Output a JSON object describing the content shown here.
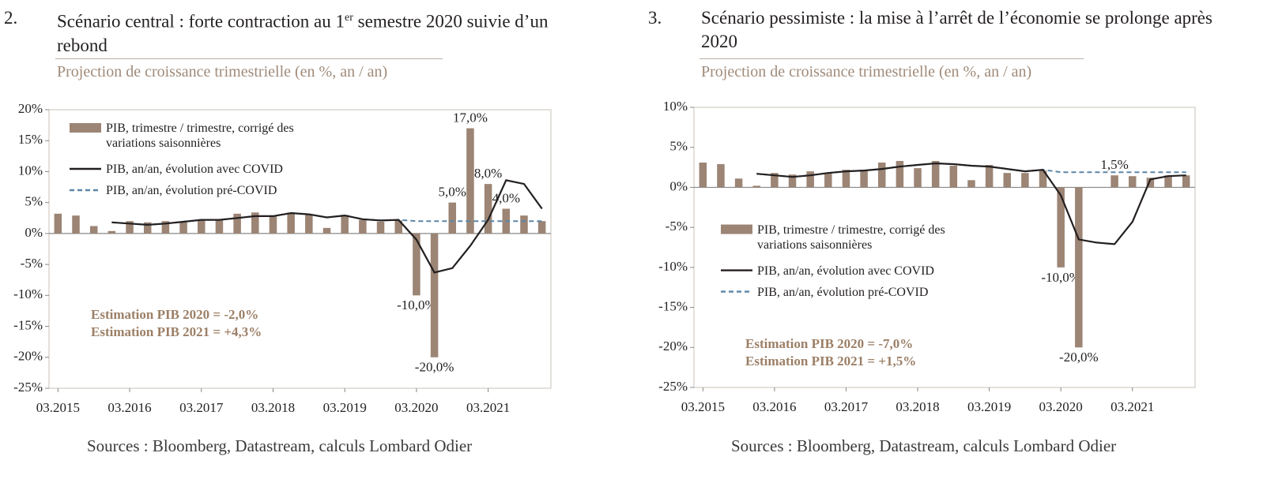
{
  "chart_data": [
    {
      "type": "bar_line",
      "number": "2.",
      "title": [
        "Scénario central : forte contraction au 1",
        "er",
        " semestre 2020 suivie d’un rebond"
      ],
      "subtitle": "Projection de croissance trimestrielle (en %, an / an)",
      "source": "Sources : Bloomberg, Datastream, calculs Lombard Odier",
      "annotations": [
        "Estimation PIB 2020 = -2,0%",
        "Estimation PIB 2021 = +4,3%"
      ],
      "legend": "upper left",
      "categories": [
        "03.2015",
        null,
        null,
        null,
        "03.2016",
        null,
        null,
        null,
        "03.2017",
        null,
        null,
        null,
        "03.2018",
        null,
        null,
        null,
        "03.2019",
        null,
        null,
        null,
        "03.2020",
        null,
        null,
        null,
        "03.2021",
        null,
        null,
        null
      ],
      "ylim": [
        -25,
        20
      ],
      "yticks": [
        {
          "value": -25,
          "label": "-25%"
        },
        {
          "value": -20,
          "label": "-20%"
        },
        {
          "value": -15,
          "label": "-15%"
        },
        {
          "value": -10,
          "label": "-10%"
        },
        {
          "value": -5,
          "label": "-5%"
        },
        {
          "value": 0,
          "label": "0%"
        },
        {
          "value": 5,
          "label": "5%"
        },
        {
          "value": 10,
          "label": "10%"
        },
        {
          "value": 15,
          "label": "15%"
        },
        {
          "value": 20,
          "label": "20%"
        }
      ],
      "series": [
        {
          "name": "PIB, trimestre / trimestre, corrigé des variations saisonnières",
          "kind": "bar",
          "color": "#9c8575",
          "values": [
            3.2,
            2.9,
            1.2,
            0.4,
            2.0,
            1.8,
            2.0,
            1.8,
            2.2,
            2.2,
            3.2,
            3.4,
            2.8,
            3.3,
            3.0,
            0.9,
            3.0,
            2.2,
            1.9,
            2.1,
            -10,
            -20,
            5,
            17,
            8,
            4,
            2.9,
            2.0
          ],
          "value_labels": [
            null,
            null,
            null,
            null,
            null,
            null,
            null,
            null,
            null,
            null,
            null,
            null,
            null,
            null,
            null,
            null,
            null,
            null,
            null,
            null,
            "-10,0%",
            "-20,0%",
            "5,0%",
            "17,0%",
            "8,0%",
            "4,0%",
            null,
            null
          ]
        },
        {
          "name": "PIB, an/an, évolution avec COVID",
          "kind": "line",
          "color": "#231f20",
          "values": [
            null,
            null,
            null,
            1.8,
            1.6,
            1.4,
            1.6,
            1.9,
            2.2,
            2.2,
            2.5,
            2.8,
            2.8,
            3.3,
            3.1,
            2.6,
            2.9,
            2.3,
            2.1,
            2.2,
            -1,
            -6.3,
            -5.6,
            -2,
            2.2,
            8.6,
            8.0,
            4.0
          ]
        },
        {
          "name": "PIB, an/an, évolution pré-COVID",
          "kind": "dashed",
          "color": "#5b86a8",
          "values": [
            null,
            null,
            null,
            1.8,
            1.6,
            1.4,
            1.6,
            1.9,
            2.2,
            2.2,
            2.5,
            2.8,
            2.8,
            3.3,
            3.1,
            2.6,
            2.9,
            2.3,
            2.1,
            2.2,
            2.0,
            2.0,
            2.0,
            2.0,
            2.0,
            2.0,
            2.0,
            2.0
          ]
        }
      ]
    },
    {
      "type": "bar_line",
      "number": "3.",
      "title": [
        "Scénario pessimiste : la mise à l’arrêt de l’économie se prolonge après 2020"
      ],
      "subtitle": "Projection de croissance trimestrielle (en %, an / an)",
      "source": "Sources : Bloomberg, Datastream, calculs Lombard Odier",
      "annotations": [
        "Estimation PIB 2020 = -7,0%",
        "Estimation PIB 2021 = +1,5%"
      ],
      "legend": "center left",
      "categories": [
        "03.2015",
        null,
        null,
        null,
        "03.2016",
        null,
        null,
        null,
        "03.2017",
        null,
        null,
        null,
        "03.2018",
        null,
        null,
        null,
        "03.2019",
        null,
        null,
        null,
        "03.2020",
        null,
        null,
        null,
        "03.2021",
        null,
        null,
        null
      ],
      "ylim": [
        -25,
        10
      ],
      "yticks": [
        {
          "value": -25,
          "label": "-25%"
        },
        {
          "value": -20,
          "label": "-20%"
        },
        {
          "value": -15,
          "label": "-15%"
        },
        {
          "value": -10,
          "label": "-10%"
        },
        {
          "value": -5,
          "label": "-5%"
        },
        {
          "value": 0,
          "label": "0%"
        },
        {
          "value": 5,
          "label": "5%"
        },
        {
          "value": 10,
          "label": "10%"
        }
      ],
      "series": [
        {
          "name": "PIB, trimestre / trimestre, corrigé des variations saisonnières",
          "kind": "bar",
          "color": "#9c8575",
          "values": [
            3.1,
            2.9,
            1.1,
            0.2,
            1.8,
            1.6,
            2.0,
            1.8,
            2.2,
            2.2,
            3.1,
            3.3,
            2.4,
            3.3,
            2.7,
            0.9,
            2.8,
            1.8,
            1.8,
            2.1,
            -10,
            -20,
            0,
            1.5,
            1.4,
            1.2,
            1.5,
            1.5
          ],
          "value_labels": [
            null,
            null,
            null,
            null,
            null,
            null,
            null,
            null,
            null,
            null,
            null,
            null,
            null,
            null,
            null,
            null,
            null,
            null,
            null,
            null,
            "-10,0%",
            "-20,0%",
            null,
            "1,5%",
            null,
            null,
            null,
            null
          ]
        },
        {
          "name": "PIB, an/an, évolution avec COVID",
          "kind": "line",
          "color": "#231f20",
          "values": [
            null,
            null,
            null,
            1.7,
            1.5,
            1.3,
            1.5,
            1.8,
            2.0,
            2.1,
            2.3,
            2.6,
            2.8,
            3.0,
            2.9,
            2.7,
            2.6,
            2.3,
            2.0,
            2.2,
            -1,
            -6.5,
            -6.9,
            -7.1,
            -4.3,
            1.0,
            1.4,
            1.5
          ]
        },
        {
          "name": "PIB, an/an, évolution pré-COVID",
          "kind": "dashed",
          "color": "#5b86a8",
          "values": [
            null,
            null,
            null,
            1.7,
            1.5,
            1.3,
            1.5,
            1.8,
            2.0,
            2.1,
            2.3,
            2.6,
            2.8,
            3.0,
            2.9,
            2.7,
            2.6,
            2.3,
            2.0,
            2.2,
            1.9,
            1.9,
            1.9,
            1.9,
            1.9,
            1.9,
            1.9,
            1.9
          ]
        }
      ]
    }
  ]
}
